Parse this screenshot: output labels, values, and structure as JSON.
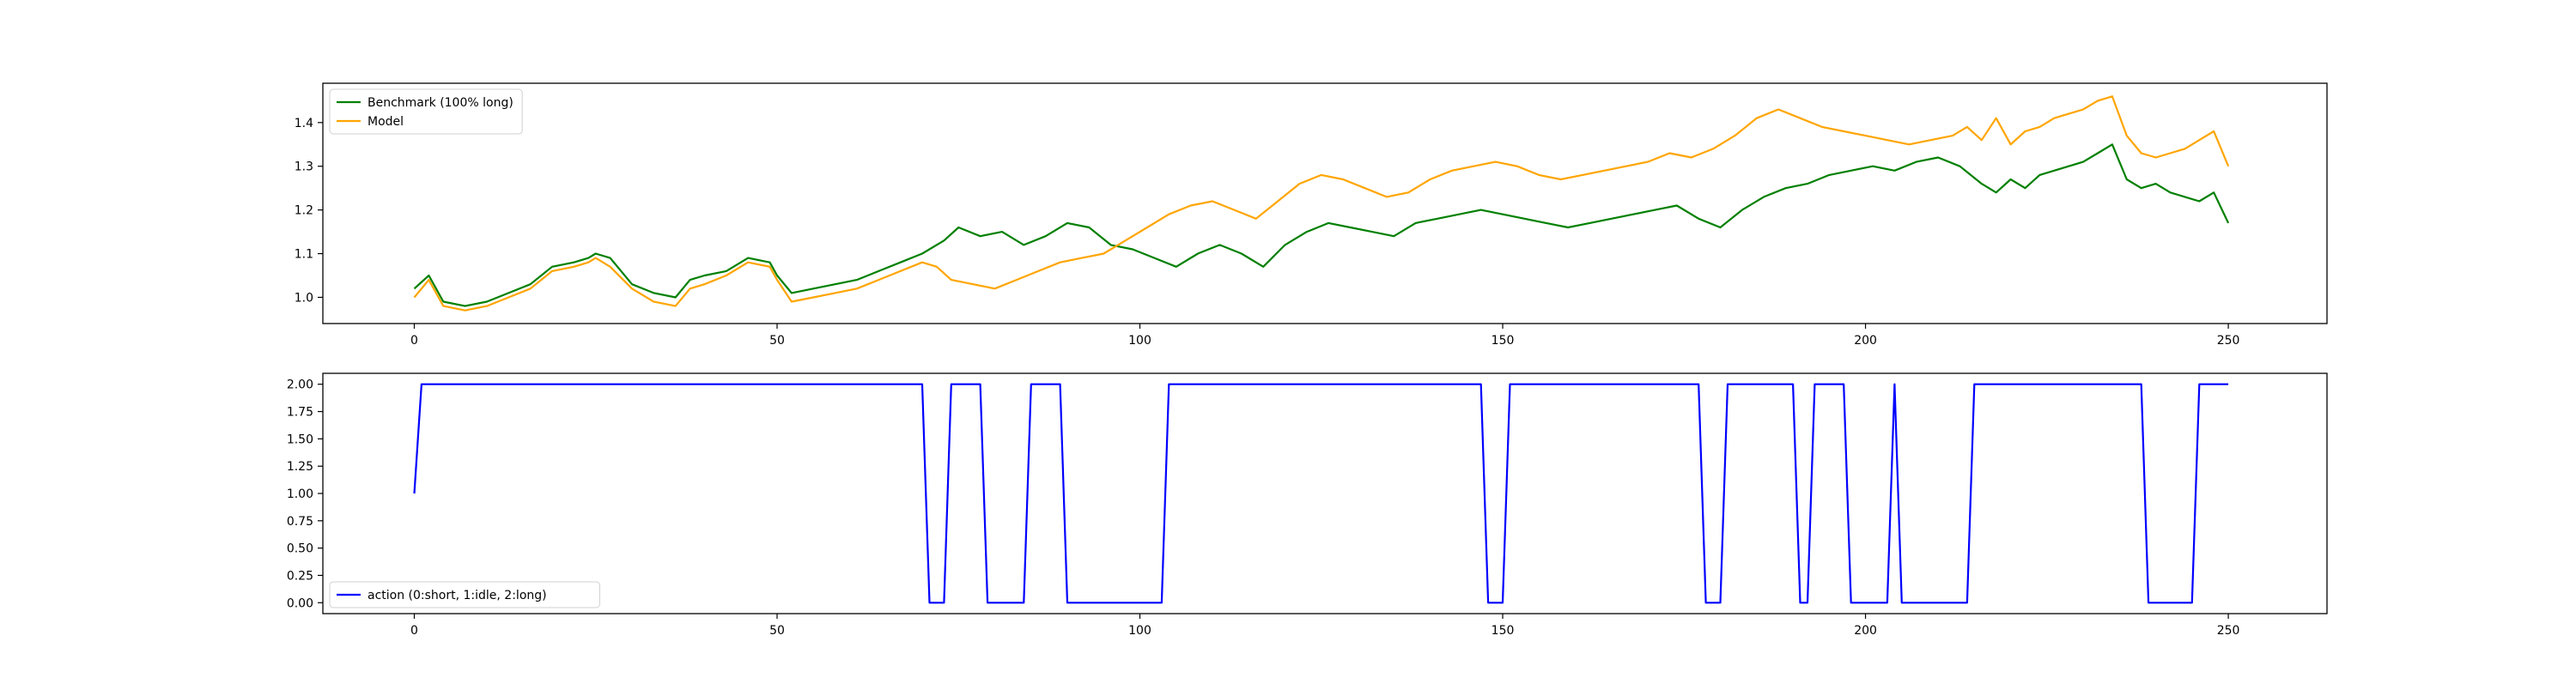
{
  "chart_data": [
    {
      "type": "line",
      "title": "",
      "xlabel": "",
      "ylabel": "",
      "xlim": [
        -12.6,
        263.6
      ],
      "ylim": [
        0.94,
        1.49
      ],
      "xticks": [
        0,
        50,
        100,
        150,
        200,
        250
      ],
      "yticks": [
        1.0,
        1.1,
        1.2,
        1.3,
        1.4
      ],
      "ytick_labels": [
        "1.0",
        "1.1",
        "1.2",
        "1.3",
        "1.4"
      ],
      "legend_position": "upper-left",
      "grid": false,
      "series": [
        {
          "name": "Benchmark (100% long)",
          "color": "#008000",
          "points": [
            [
              0,
              1.02
            ],
            [
              2,
              1.05
            ],
            [
              4,
              0.99
            ],
            [
              7,
              0.98
            ],
            [
              10,
              0.99
            ],
            [
              13,
              1.01
            ],
            [
              16,
              1.03
            ],
            [
              19,
              1.07
            ],
            [
              22,
              1.08
            ],
            [
              24,
              1.09
            ],
            [
              25,
              1.1
            ],
            [
              27,
              1.09
            ],
            [
              30,
              1.03
            ],
            [
              33,
              1.01
            ],
            [
              36,
              1.0
            ],
            [
              38,
              1.04
            ],
            [
              40,
              1.05
            ],
            [
              43,
              1.06
            ],
            [
              46,
              1.09
            ],
            [
              49,
              1.08
            ],
            [
              50,
              1.05
            ],
            [
              52,
              1.01
            ],
            [
              55,
              1.02
            ],
            [
              58,
              1.03
            ],
            [
              61,
              1.04
            ],
            [
              64,
              1.06
            ],
            [
              67,
              1.08
            ],
            [
              70,
              1.1
            ],
            [
              73,
              1.13
            ],
            [
              75,
              1.16
            ],
            [
              78,
              1.14
            ],
            [
              81,
              1.15
            ],
            [
              84,
              1.12
            ],
            [
              87,
              1.14
            ],
            [
              90,
              1.17
            ],
            [
              93,
              1.16
            ],
            [
              96,
              1.12
            ],
            [
              99,
              1.11
            ],
            [
              102,
              1.09
            ],
            [
              105,
              1.07
            ],
            [
              108,
              1.1
            ],
            [
              111,
              1.12
            ],
            [
              114,
              1.1
            ],
            [
              117,
              1.07
            ],
            [
              120,
              1.12
            ],
            [
              123,
              1.15
            ],
            [
              126,
              1.17
            ],
            [
              129,
              1.16
            ],
            [
              132,
              1.15
            ],
            [
              135,
              1.14
            ],
            [
              138,
              1.17
            ],
            [
              141,
              1.18
            ],
            [
              144,
              1.19
            ],
            [
              147,
              1.2
            ],
            [
              150,
              1.19
            ],
            [
              153,
              1.18
            ],
            [
              156,
              1.17
            ],
            [
              159,
              1.16
            ],
            [
              162,
              1.17
            ],
            [
              165,
              1.18
            ],
            [
              168,
              1.19
            ],
            [
              171,
              1.2
            ],
            [
              174,
              1.21
            ],
            [
              177,
              1.18
            ],
            [
              180,
              1.16
            ],
            [
              183,
              1.2
            ],
            [
              186,
              1.23
            ],
            [
              189,
              1.25
            ],
            [
              192,
              1.26
            ],
            [
              195,
              1.28
            ],
            [
              198,
              1.29
            ],
            [
              201,
              1.3
            ],
            [
              204,
              1.29
            ],
            [
              207,
              1.31
            ],
            [
              210,
              1.32
            ],
            [
              213,
              1.3
            ],
            [
              216,
              1.26
            ],
            [
              218,
              1.24
            ],
            [
              220,
              1.27
            ],
            [
              222,
              1.25
            ],
            [
              224,
              1.28
            ],
            [
              226,
              1.29
            ],
            [
              228,
              1.3
            ],
            [
              230,
              1.31
            ],
            [
              232,
              1.33
            ],
            [
              234,
              1.35
            ],
            [
              236,
              1.27
            ],
            [
              238,
              1.25
            ],
            [
              240,
              1.26
            ],
            [
              242,
              1.24
            ],
            [
              244,
              1.23
            ],
            [
              246,
              1.22
            ],
            [
              248,
              1.24
            ],
            [
              250,
              1.17
            ]
          ]
        },
        {
          "name": "Model",
          "color": "#ffa500",
          "points": [
            [
              0,
              1.0
            ],
            [
              2,
              1.04
            ],
            [
              4,
              0.98
            ],
            [
              7,
              0.97
            ],
            [
              10,
              0.98
            ],
            [
              13,
              1.0
            ],
            [
              16,
              1.02
            ],
            [
              19,
              1.06
            ],
            [
              22,
              1.07
            ],
            [
              24,
              1.08
            ],
            [
              25,
              1.09
            ],
            [
              27,
              1.07
            ],
            [
              30,
              1.02
            ],
            [
              33,
              0.99
            ],
            [
              36,
              0.98
            ],
            [
              38,
              1.02
            ],
            [
              40,
              1.03
            ],
            [
              43,
              1.05
            ],
            [
              46,
              1.08
            ],
            [
              49,
              1.07
            ],
            [
              50,
              1.04
            ],
            [
              52,
              0.99
            ],
            [
              55,
              1.0
            ],
            [
              58,
              1.01
            ],
            [
              61,
              1.02
            ],
            [
              64,
              1.04
            ],
            [
              67,
              1.06
            ],
            [
              70,
              1.08
            ],
            [
              72,
              1.07
            ],
            [
              74,
              1.04
            ],
            [
              77,
              1.03
            ],
            [
              80,
              1.02
            ],
            [
              83,
              1.04
            ],
            [
              86,
              1.06
            ],
            [
              89,
              1.08
            ],
            [
              92,
              1.09
            ],
            [
              95,
              1.1
            ],
            [
              98,
              1.13
            ],
            [
              101,
              1.16
            ],
            [
              104,
              1.19
            ],
            [
              107,
              1.21
            ],
            [
              110,
              1.22
            ],
            [
              113,
              1.2
            ],
            [
              116,
              1.18
            ],
            [
              119,
              1.22
            ],
            [
              122,
              1.26
            ],
            [
              125,
              1.28
            ],
            [
              128,
              1.27
            ],
            [
              131,
              1.25
            ],
            [
              134,
              1.23
            ],
            [
              137,
              1.24
            ],
            [
              140,
              1.27
            ],
            [
              143,
              1.29
            ],
            [
              146,
              1.3
            ],
            [
              149,
              1.31
            ],
            [
              152,
              1.3
            ],
            [
              155,
              1.28
            ],
            [
              158,
              1.27
            ],
            [
              161,
              1.28
            ],
            [
              164,
              1.29
            ],
            [
              167,
              1.3
            ],
            [
              170,
              1.31
            ],
            [
              173,
              1.33
            ],
            [
              176,
              1.32
            ],
            [
              179,
              1.34
            ],
            [
              182,
              1.37
            ],
            [
              185,
              1.41
            ],
            [
              188,
              1.43
            ],
            [
              191,
              1.41
            ],
            [
              194,
              1.39
            ],
            [
              197,
              1.38
            ],
            [
              200,
              1.37
            ],
            [
              203,
              1.36
            ],
            [
              206,
              1.35
            ],
            [
              209,
              1.36
            ],
            [
              212,
              1.37
            ],
            [
              214,
              1.39
            ],
            [
              216,
              1.36
            ],
            [
              218,
              1.41
            ],
            [
              220,
              1.35
            ],
            [
              222,
              1.38
            ],
            [
              224,
              1.39
            ],
            [
              226,
              1.41
            ],
            [
              228,
              1.42
            ],
            [
              230,
              1.43
            ],
            [
              232,
              1.45
            ],
            [
              234,
              1.46
            ],
            [
              236,
              1.37
            ],
            [
              238,
              1.33
            ],
            [
              240,
              1.32
            ],
            [
              242,
              1.33
            ],
            [
              244,
              1.34
            ],
            [
              246,
              1.36
            ],
            [
              248,
              1.38
            ],
            [
              250,
              1.3
            ]
          ]
        }
      ]
    },
    {
      "type": "line",
      "title": "",
      "xlabel": "",
      "ylabel": "",
      "xlim": [
        -12.6,
        263.6
      ],
      "ylim": [
        -0.1,
        2.1
      ],
      "xticks": [
        0,
        50,
        100,
        150,
        200,
        250
      ],
      "yticks": [
        0.0,
        0.25,
        0.5,
        0.75,
        1.0,
        1.25,
        1.5,
        1.75,
        2.0
      ],
      "ytick_labels": [
        "0.00",
        "0.25",
        "0.50",
        "0.75",
        "1.00",
        "1.25",
        "1.50",
        "1.75",
        "2.00"
      ],
      "legend_position": "lower-left",
      "grid": false,
      "series": [
        {
          "name": "action (0:short, 1:idle, 2:long)",
          "color": "#0000ff",
          "points": [
            [
              0,
              1
            ],
            [
              1,
              2
            ],
            [
              70,
              2
            ],
            [
              71,
              0
            ],
            [
              73,
              0
            ],
            [
              74,
              2
            ],
            [
              78,
              2
            ],
            [
              79,
              0
            ],
            [
              84,
              0
            ],
            [
              85,
              2
            ],
            [
              89,
              2
            ],
            [
              90,
              0
            ],
            [
              103,
              0
            ],
            [
              104,
              2
            ],
            [
              147,
              2
            ],
            [
              148,
              0
            ],
            [
              150,
              0
            ],
            [
              151,
              2
            ],
            [
              177,
              2
            ],
            [
              178,
              0
            ],
            [
              180,
              0
            ],
            [
              181,
              2
            ],
            [
              190,
              2
            ],
            [
              191,
              0
            ],
            [
              192,
              0
            ],
            [
              193,
              2
            ],
            [
              197,
              2
            ],
            [
              198,
              0
            ],
            [
              203,
              0
            ],
            [
              204,
              2
            ],
            [
              205,
              0
            ],
            [
              214,
              0
            ],
            [
              215,
              2
            ],
            [
              238,
              2
            ],
            [
              239,
              0
            ],
            [
              245,
              0
            ],
            [
              246,
              2
            ],
            [
              250,
              2
            ]
          ]
        }
      ]
    }
  ]
}
